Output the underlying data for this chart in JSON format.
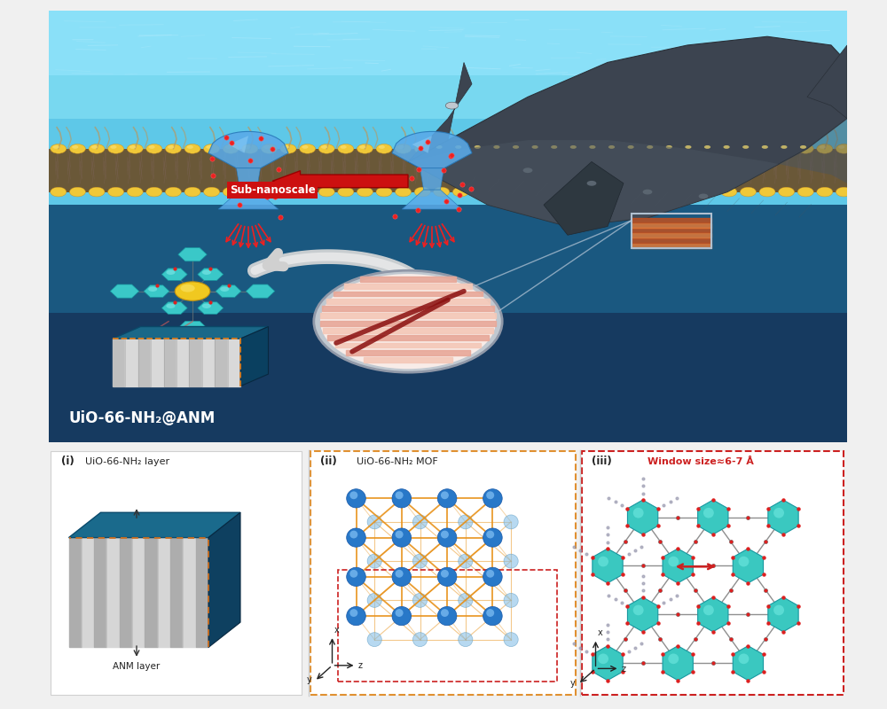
{
  "panel_labels": [
    "(i)",
    "(ii)",
    "(iii)"
  ],
  "panel_i_labels": [
    "UiO-66-NH₂ layer",
    "ANM layer"
  ],
  "panel_ii_label": "UiO-66-NH₂ MOF",
  "panel_iii_label": "Window size≈6-7 Å",
  "main_label": "UiO-66-NH₂@ANM",
  "sub_nanoscale_label": "Sub-nanoscale",
  "fig_width": 10.0,
  "fig_height": 8.0,
  "dpi": 100,
  "top_water_color": "#6ecae4",
  "top_water_color2": "#4ab4d4",
  "membrane_bg": "#6a5a3a",
  "lipid_color": "#e8b830",
  "channel_color": "#5aaae8",
  "ion_color": "#dd2020",
  "arrow_color": "#cc1010",
  "whale_color": "#3a3f4a",
  "bottom_water": "#2a5a8a",
  "bottom_bg": "#f4f4f4",
  "mof_node_color": "#3a8ad4",
  "mof_link_color": "#e07820",
  "hex_color": "#40c8c0",
  "white_arrow_color": "#e8e8e8"
}
